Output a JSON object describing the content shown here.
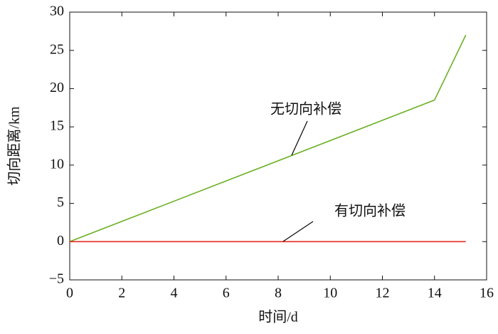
{
  "chart_data": {
    "type": "line",
    "xlabel": "时间/d",
    "ylabel": "切向距离/km",
    "xlim": [
      0,
      16
    ],
    "xticks": [
      0,
      2,
      4,
      6,
      8,
      10,
      12,
      14,
      16
    ],
    "ylim": [
      -5,
      30
    ],
    "yticks": [
      {
        "value": -5,
        "label": "−5"
      },
      0,
      5,
      10,
      15,
      20,
      25,
      30
    ],
    "series": [
      {
        "name": "无切向补偿",
        "color": "#6ab023",
        "x": [
          0,
          14,
          15.2
        ],
        "values": [
          0,
          18.5,
          27
        ]
      },
      {
        "name": "有切向补偿",
        "color": "#e8281e",
        "x": [
          0,
          15.2
        ],
        "values": [
          0,
          0
        ]
      }
    ]
  }
}
